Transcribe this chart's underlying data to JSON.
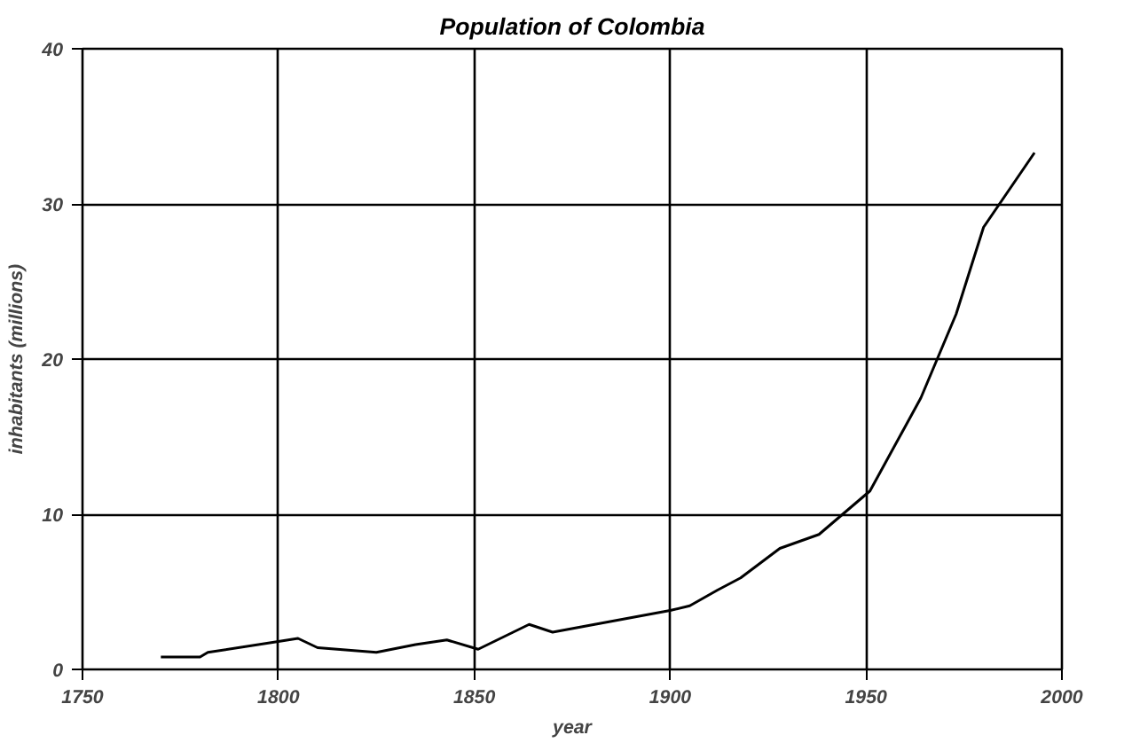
{
  "chart_data": {
    "type": "line",
    "title": "Population of Colombia",
    "xlabel": "year",
    "ylabel": "inhabitants (millions)",
    "x": [
      1770,
      1780,
      1782,
      1800,
      1805,
      1810,
      1825,
      1835,
      1843,
      1851,
      1864,
      1870,
      1900,
      1905,
      1912,
      1918,
      1928,
      1938,
      1951,
      1964,
      1973,
      1980,
      1993
    ],
    "series": [
      {
        "color": "#000000",
        "values": [
          0.8,
          0.8,
          1.1,
          1.8,
          2.0,
          1.4,
          1.1,
          1.6,
          1.9,
          1.3,
          2.9,
          2.4,
          3.8,
          4.1,
          5.1,
          5.9,
          7.8,
          8.7,
          11.5,
          17.5,
          22.9,
          28.5,
          33.3
        ]
      }
    ],
    "xlim": [
      1750,
      2000
    ],
    "xticks": [
      1750,
      1800,
      1850,
      1900,
      1950,
      2000
    ],
    "ylim": [
      0,
      40
    ],
    "yticks": [
      0,
      10,
      20,
      30,
      40
    ],
    "grid": true,
    "marker": "none",
    "line_style": "solid"
  }
}
